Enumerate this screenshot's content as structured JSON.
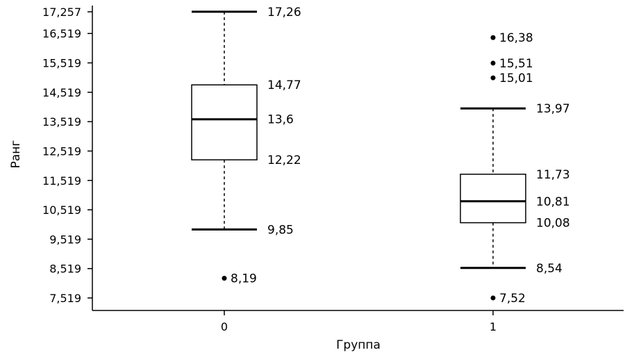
{
  "chart_data": {
    "type": "box",
    "xlabel": "Группа",
    "ylabel": "Ранг",
    "ylim": [
      7.2,
      17.4
    ],
    "yticks": [
      7.519,
      8.519,
      9.519,
      10.519,
      11.519,
      12.519,
      13.519,
      14.519,
      15.519,
      16.519,
      17.257
    ],
    "ytick_labels": [
      "7,519",
      "8,519",
      "9,519",
      "10,519",
      "11,519",
      "12,519",
      "13,519",
      "14,519",
      "15,519",
      "16,519",
      "17,257"
    ],
    "grid": false,
    "groups": [
      {
        "category": "0",
        "whisker_low": 9.85,
        "q1": 12.22,
        "median": 13.6,
        "q3": 14.77,
        "whisker_high": 17.26,
        "outliers": [
          8.19
        ],
        "labels": {
          "whisker_high": "17,26",
          "q3": "14,77",
          "median": "13,6",
          "q1": "12,22",
          "whisker_low": "9,85",
          "outliers": [
            "8,19"
          ]
        }
      },
      {
        "category": "1",
        "whisker_low": 8.54,
        "q1": 10.08,
        "median": 10.81,
        "q3": 11.73,
        "whisker_high": 13.97,
        "outliers": [
          16.38,
          15.51,
          15.01,
          7.52
        ],
        "labels": {
          "whisker_high": "13,97",
          "q3": "11,73",
          "median": "10,81",
          "q1": "10,08",
          "whisker_low": "8,54",
          "outliers": [
            "16,38",
            "15,51",
            "15,01",
            "7,52"
          ]
        }
      }
    ]
  }
}
